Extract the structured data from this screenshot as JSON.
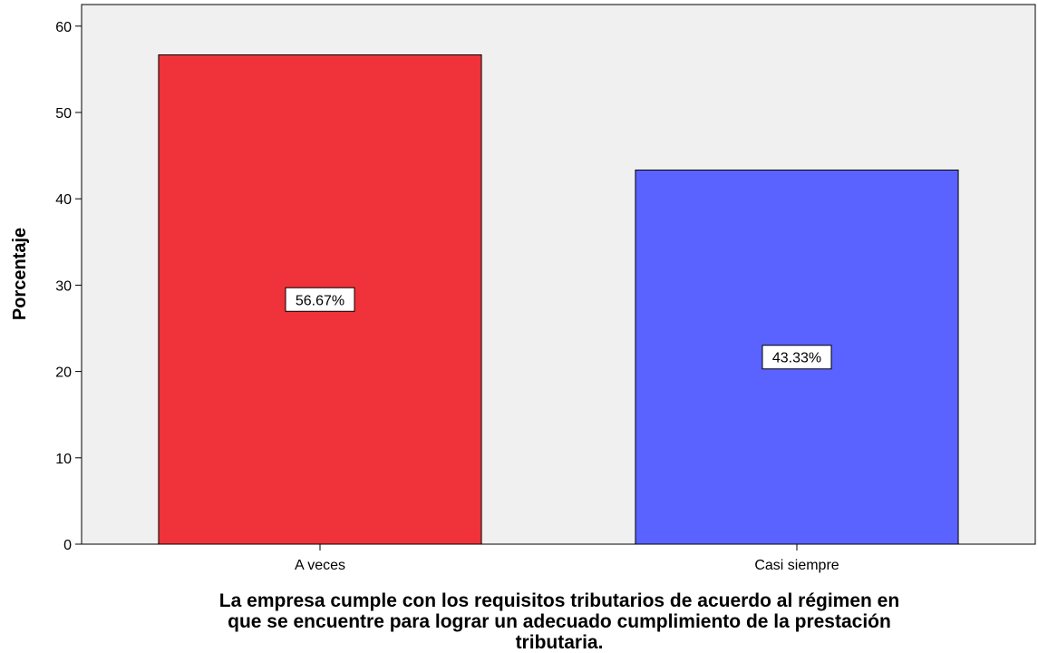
{
  "chart_data": {
    "type": "bar",
    "categories": [
      "A veces",
      "Casi siempre"
    ],
    "values": [
      56.67,
      43.33
    ],
    "data_labels": [
      "56.67%",
      "43.33%"
    ],
    "bar_colors": [
      "#f0323a",
      "#5a62ff"
    ],
    "plot_background": "#f0f0f0",
    "ylabel": "Porcentaje",
    "xlabel_lines": [
      "La empresa cumple con los requisitos tributarios de acuerdo al régimen en",
      "que se encuentre para lograr un adecuado cumplimiento de la prestación",
      "tributaria."
    ],
    "ylim": [
      0,
      62.5
    ],
    "yticks": [
      0,
      10,
      20,
      30,
      40,
      50,
      60
    ],
    "grid": false
  }
}
